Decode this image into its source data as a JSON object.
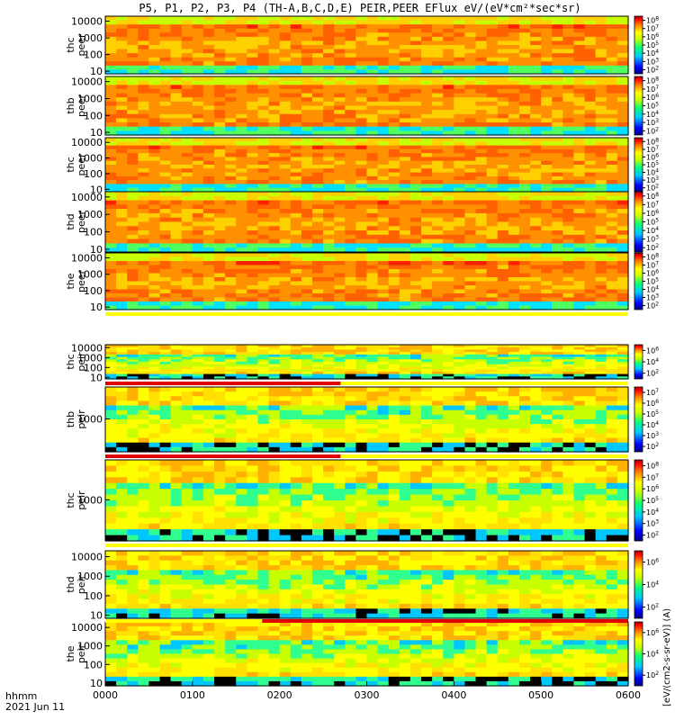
{
  "title": "P5, P1, P2, P3, P4 (TH-A,B,C,D,E) PEIR,PEER EFlux eV/(eV*cm²*sec*sr)",
  "x_axis": {
    "ticks": [
      "0000",
      "0100",
      "0200",
      "0300",
      "0400",
      "0500",
      "0600"
    ],
    "label_hhmm": "hhmm",
    "label_date": "2021 Jun 11"
  },
  "colorbar_label": "[eV/(cm2-s-sr-eV)] (A)",
  "colors": {
    "frame": "#000000",
    "flag_red": "#e00000",
    "flag_yellow": "#ffff00"
  },
  "chart_data": [
    {
      "type": "heatmap",
      "label": "thc peer",
      "probe": "TH-C",
      "species": "electron",
      "yticks": [
        "10",
        "100",
        "1000",
        "10000"
      ],
      "ylim": [
        7,
        20000
      ],
      "ylog": true,
      "cbar_ticks": [
        "10^2",
        "10^3",
        "10^4",
        "10^5",
        "10^6",
        "10^7",
        "10^8"
      ],
      "clim": [
        100,
        100000000
      ]
    },
    {
      "type": "heatmap",
      "label": "thb peer",
      "probe": "TH-B",
      "species": "electron",
      "yticks": [
        "10",
        "100",
        "1000",
        "10000"
      ],
      "ylim": [
        7,
        20000
      ],
      "ylog": true,
      "cbar_ticks": [
        "10^2",
        "10^3",
        "10^4",
        "10^5",
        "10^6",
        "10^7",
        "10^8"
      ],
      "clim": [
        100,
        100000000
      ]
    },
    {
      "type": "heatmap",
      "label": "thc peer",
      "probe": "TH-C",
      "species": "electron",
      "yticks": [
        "10",
        "100",
        "1000",
        "10000"
      ],
      "ylim": [
        7,
        20000
      ],
      "ylog": true,
      "cbar_ticks": [
        "10^2",
        "10^3",
        "10^4",
        "10^5",
        "10^6",
        "10^7",
        "10^8"
      ],
      "clim": [
        100,
        100000000
      ]
    },
    {
      "type": "heatmap",
      "label": "thd peer",
      "probe": "TH-D",
      "species": "electron",
      "yticks": [
        "10",
        "100",
        "1000",
        "10000"
      ],
      "ylim": [
        7,
        20000
      ],
      "ylog": true,
      "cbar_ticks": [
        "10^2",
        "10^3",
        "10^4",
        "10^5",
        "10^6",
        "10^7",
        "10^8"
      ],
      "clim": [
        100,
        100000000
      ]
    },
    {
      "type": "heatmap",
      "label": "the peer",
      "probe": "TH-E",
      "species": "electron",
      "yticks": [
        "10",
        "100",
        "1000",
        "10000"
      ],
      "ylim": [
        7,
        20000
      ],
      "ylog": true,
      "cbar_ticks": [
        "10^2",
        "10^3",
        "10^4",
        "10^5",
        "10^6",
        "10^7",
        "10^8"
      ],
      "clim": [
        100,
        100000000
      ]
    },
    {
      "type": "heatmap",
      "label": "thc peir",
      "probe": "TH-C",
      "species": "ion",
      "yticks": [
        "10",
        "100",
        "1000",
        "10000"
      ],
      "ylim": [
        7,
        20000
      ],
      "ylog": true,
      "cbar_ticks": [
        "10^2",
        "10^4",
        "10^6"
      ],
      "clim": [
        100,
        10000000
      ]
    },
    {
      "type": "heatmap",
      "label": "thb peir",
      "probe": "TH-B",
      "species": "ion",
      "yticks": [
        "1000"
      ],
      "ylim": [
        30,
        30000
      ],
      "ylog": true,
      "cbar_ticks": [
        "10^2",
        "10^3",
        "10^4",
        "10^5",
        "10^6",
        "10^7"
      ],
      "clim": [
        100,
        10000000
      ]
    },
    {
      "type": "heatmap",
      "label": "thc peir",
      "probe": "TH-C",
      "species": "ion",
      "yticks": [
        "1000"
      ],
      "ylim": [
        30,
        30000
      ],
      "ylog": true,
      "cbar_ticks": [
        "10^2",
        "10^3",
        "10^4",
        "10^5",
        "10^6",
        "10^7",
        "10^8"
      ],
      "clim": [
        100,
        100000000
      ]
    },
    {
      "type": "heatmap",
      "label": "thd peir",
      "probe": "TH-D",
      "species": "ion",
      "yticks": [
        "10",
        "100",
        "1000",
        "10000"
      ],
      "ylim": [
        7,
        20000
      ],
      "ylog": true,
      "cbar_ticks": [
        "10^2",
        "10^4",
        "10^6"
      ],
      "clim": [
        100,
        10000000
      ]
    },
    {
      "type": "heatmap",
      "label": "the peir",
      "probe": "TH-E",
      "species": "ion",
      "yticks": [
        "10",
        "100",
        "1000",
        "10000"
      ],
      "ylim": [
        7,
        20000
      ],
      "ylog": true,
      "cbar_ticks": [
        "10^2",
        "10^4",
        "10^6"
      ],
      "clim": [
        100,
        10000000
      ]
    }
  ]
}
